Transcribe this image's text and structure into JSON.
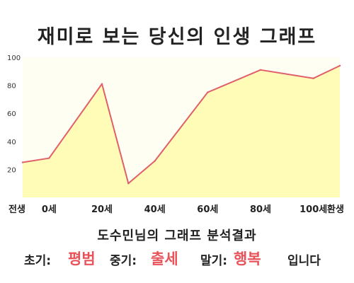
{
  "header": {
    "title": "재미로 보는 당신의 인생 그래프"
  },
  "analysis": {
    "title": "도수민님의 그래프 분석결과",
    "early_label": "초기:",
    "early_value": "평범",
    "middle_label": "중기:",
    "middle_value": "출세",
    "late_label": "말기:",
    "late_value": "행복",
    "ending": "입니다"
  },
  "colors": {
    "line": "#e0606a",
    "fill": "#fffcb8",
    "plot_bg": "#fffef2",
    "highlight": "#e8535a"
  },
  "chart_data": {
    "type": "area",
    "title": "재미로 보는 당신의 인생 그래프",
    "xlabel": "",
    "ylabel": "",
    "x": [
      -10,
      0,
      20,
      30,
      40,
      60,
      80,
      100,
      110
    ],
    "values": [
      25,
      28,
      81,
      10,
      26,
      75,
      91,
      85,
      94
    ],
    "x_tick_values": [
      -10,
      0,
      20,
      40,
      60,
      80,
      100,
      110
    ],
    "x_tick_labels": [
      "전생",
      "0세",
      "20세",
      "40세",
      "60세",
      "80세",
      "100세",
      "환생"
    ],
    "yticks": [
      20,
      40,
      60,
      80,
      100
    ],
    "ylim": [
      0,
      100
    ],
    "grid": false,
    "legend": "none"
  }
}
